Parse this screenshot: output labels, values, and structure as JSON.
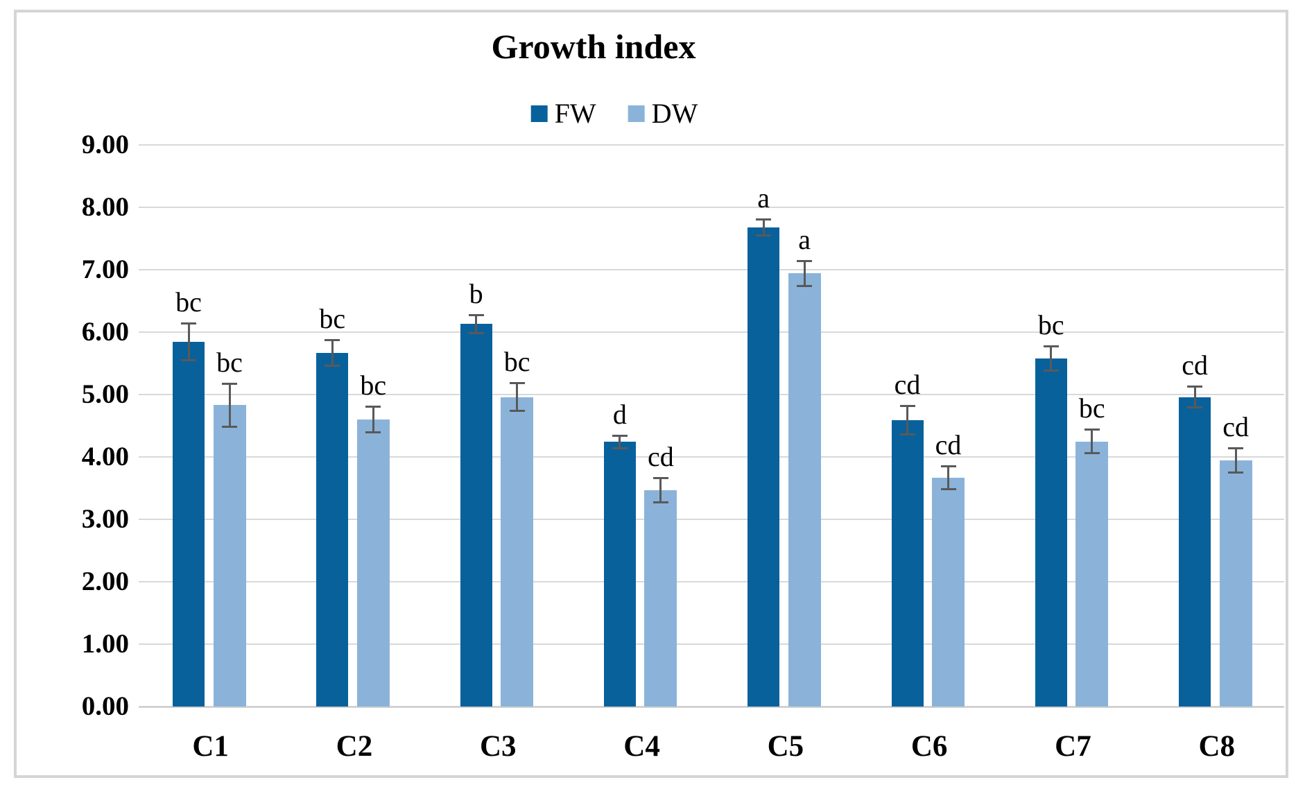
{
  "chart_data": {
    "type": "bar",
    "title": "Growth index",
    "categories": [
      "C1",
      "C2",
      "C3",
      "C4",
      "C5",
      "C6",
      "C7",
      "C8"
    ],
    "series": [
      {
        "name": "FW",
        "color": "#09619b",
        "values": [
          5.85,
          5.67,
          6.13,
          4.24,
          7.68,
          4.59,
          5.58,
          4.96
        ],
        "errors": [
          0.3,
          0.21,
          0.15,
          0.11,
          0.13,
          0.23,
          0.2,
          0.17
        ],
        "sig_letters": [
          "bc",
          "bc",
          "b",
          "d",
          "a",
          "cd",
          "bc",
          "cd"
        ]
      },
      {
        "name": "DW",
        "color": "#8bb3d9",
        "values": [
          4.83,
          4.6,
          4.96,
          3.47,
          6.94,
          3.67,
          4.25,
          3.94
        ],
        "errors": [
          0.35,
          0.21,
          0.23,
          0.2,
          0.21,
          0.19,
          0.19,
          0.2
        ],
        "sig_letters": [
          "bc",
          "bc",
          "bc",
          "cd",
          "a",
          "cd",
          "bc",
          "cd"
        ]
      }
    ],
    "y_ticks": [
      "0.00",
      "1.00",
      "2.00",
      "3.00",
      "4.00",
      "5.00",
      "6.00",
      "7.00",
      "8.00",
      "9.00"
    ],
    "ylim": [
      0,
      9
    ],
    "xlabel": "",
    "ylabel": "",
    "grid": "horizontal",
    "legend_position": "top",
    "error_bar_color": "#595959",
    "gridline_color": "#d9d9d9",
    "frame_border_color": "#d6d4d4"
  }
}
